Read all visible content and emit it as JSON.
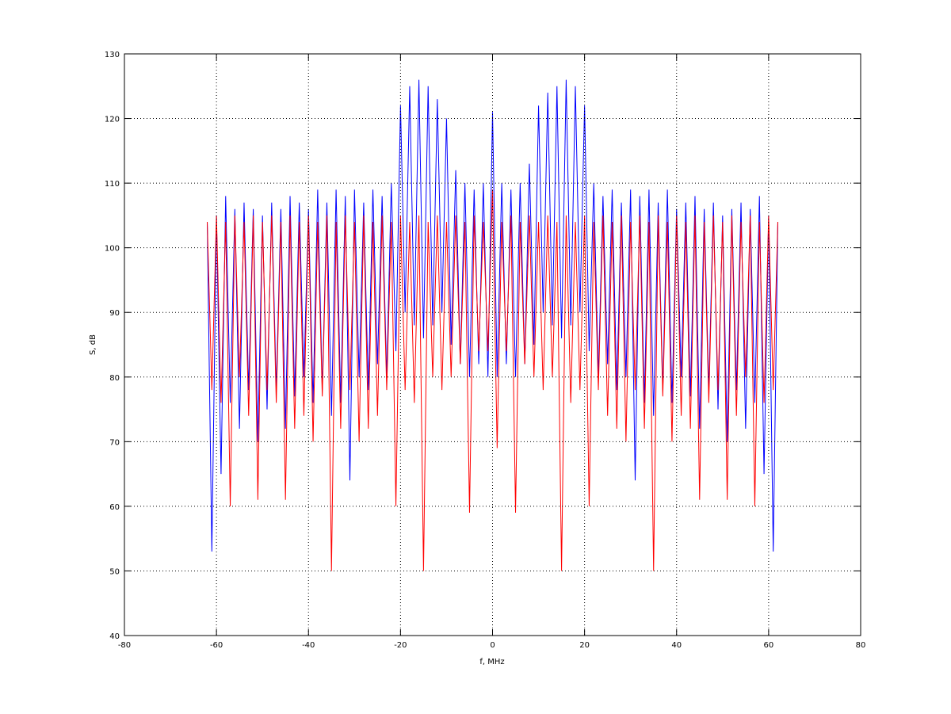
{
  "chart_data": {
    "type": "line",
    "xlabel": "f, MHz",
    "ylabel": "S, dB",
    "xlim": [
      -80,
      80
    ],
    "ylim": [
      40,
      130
    ],
    "xticks": [
      -80,
      -60,
      -40,
      -20,
      0,
      20,
      40,
      60,
      80
    ],
    "yticks": [
      40,
      50,
      60,
      70,
      80,
      90,
      100,
      110,
      120,
      130
    ],
    "grid": true,
    "x": [
      -62,
      -61,
      -60,
      -59,
      -58,
      -57,
      -56,
      -55,
      -54,
      -53,
      -52,
      -51,
      -50,
      -49,
      -48,
      -47,
      -46,
      -45,
      -44,
      -43,
      -42,
      -41,
      -40,
      -39,
      -38,
      -37,
      -36,
      -35,
      -34,
      -33,
      -32,
      -31,
      -30,
      -29,
      -28,
      -27,
      -26,
      -25,
      -24,
      -23,
      -22,
      -21,
      -20,
      -19,
      -18,
      -17,
      -16,
      -15,
      -14,
      -13,
      -12,
      -11,
      -10,
      -9,
      -8,
      -7,
      -6,
      -5,
      -4,
      -3,
      -2,
      -1,
      0,
      1,
      2,
      3,
      4,
      5,
      6,
      7,
      8,
      9,
      10,
      11,
      12,
      13,
      14,
      15,
      16,
      17,
      18,
      19,
      20,
      21,
      22,
      23,
      24,
      25,
      26,
      27,
      28,
      29,
      30,
      31,
      32,
      33,
      34,
      35,
      36,
      37,
      38,
      39,
      40,
      41,
      42,
      43,
      44,
      45,
      46,
      47,
      48,
      49,
      50,
      51,
      52,
      53,
      54,
      55,
      56,
      57,
      58,
      59,
      60,
      61,
      62
    ],
    "series": [
      {
        "color": "#0000ff",
        "values": [
          104,
          53,
          105,
          65,
          108,
          76,
          106,
          72,
          107,
          78,
          106,
          70,
          105,
          75,
          107,
          78,
          106,
          72,
          108,
          77,
          107,
          80,
          106,
          76,
          109,
          78,
          107,
          74,
          109,
          76,
          108,
          64,
          109,
          80,
          107,
          78,
          109,
          82,
          108,
          80,
          110,
          84,
          122,
          90,
          125,
          88,
          126,
          86,
          125,
          88,
          123,
          90,
          120,
          85,
          112,
          82,
          110,
          80,
          109,
          82,
          110,
          80,
          121,
          80,
          110,
          82,
          109,
          80,
          110,
          82,
          113,
          85,
          122,
          90,
          124,
          88,
          125,
          86,
          126,
          88,
          125,
          90,
          122,
          84,
          110,
          80,
          108,
          82,
          109,
          78,
          107,
          80,
          109,
          64,
          108,
          76,
          109,
          74,
          107,
          78,
          109,
          76,
          106,
          80,
          107,
          77,
          108,
          72,
          106,
          78,
          107,
          75,
          105,
          70,
          106,
          78,
          107,
          72,
          106,
          76,
          108,
          65,
          105,
          53,
          104
        ]
      },
      {
        "color": "#ff0000",
        "values": [
          104,
          78,
          105,
          76,
          104,
          60,
          105,
          80,
          104,
          74,
          105,
          61,
          104,
          78,
          105,
          76,
          104,
          61,
          105,
          72,
          104,
          74,
          105,
          70,
          104,
          77,
          105,
          50,
          104,
          72,
          105,
          78,
          104,
          70,
          105,
          72,
          104,
          74,
          105,
          78,
          104,
          60,
          105,
          78,
          104,
          76,
          105,
          50,
          104,
          80,
          105,
          78,
          104,
          80,
          105,
          82,
          104,
          59,
          105,
          84,
          104,
          84,
          109,
          69,
          104,
          84,
          105,
          59,
          104,
          82,
          105,
          80,
          104,
          78,
          105,
          80,
          104,
          50,
          105,
          76,
          104,
          78,
          105,
          60,
          104,
          78,
          105,
          74,
          104,
          72,
          105,
          70,
          104,
          78,
          105,
          72,
          104,
          50,
          105,
          77,
          104,
          70,
          105,
          74,
          104,
          72,
          105,
          61,
          104,
          76,
          105,
          78,
          104,
          61,
          105,
          74,
          104,
          80,
          105,
          60,
          104,
          76,
          105,
          78,
          104
        ]
      }
    ]
  }
}
